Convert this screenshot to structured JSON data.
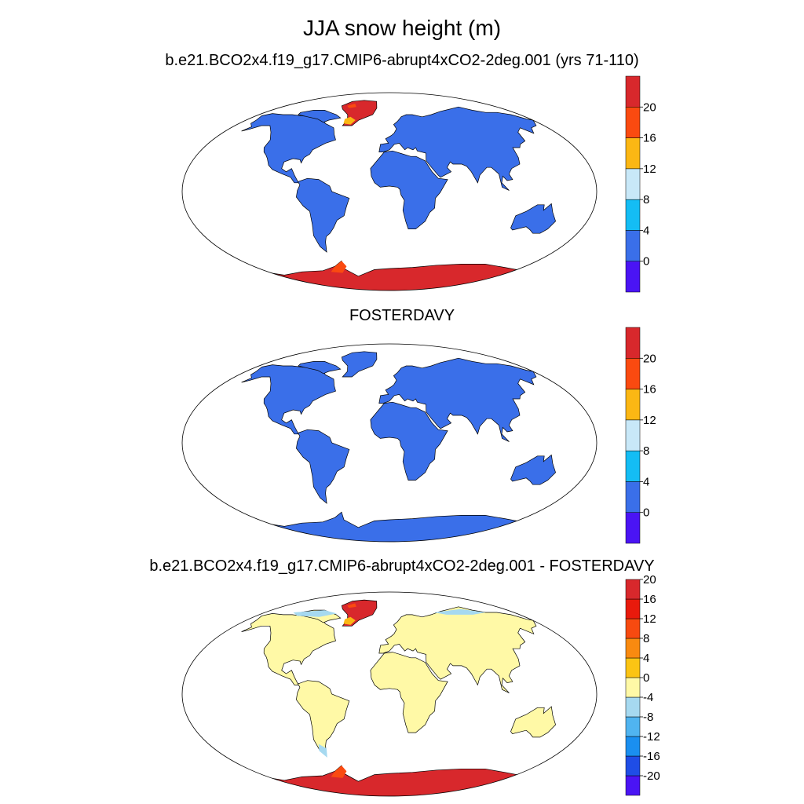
{
  "title": "JJA snow height (m)",
  "panels": [
    {
      "id": "model",
      "title": "b.e21.BCO2x4.f19_g17.CMIP6-abrupt4xCO2-2deg.001 (yrs 71-110)",
      "greenland": true,
      "antarctica": "red",
      "colorbar": {
        "colors": [
          "#4a14f4",
          "#3a6fe9",
          "#14bdf4",
          "#c8e8f8",
          "#fbb714",
          "#fa4a10",
          "#d8282c"
        ],
        "labels": [
          "0",
          "4",
          "8",
          "12",
          "16",
          "20"
        ]
      }
    },
    {
      "id": "obs",
      "title": "FOSTERDAVY",
      "greenland": false,
      "antarctica": "blue",
      "colorbar": {
        "colors": [
          "#4a14f4",
          "#3a6fe9",
          "#14bdf4",
          "#c8e8f8",
          "#fbb714",
          "#fa4a10",
          "#d8282c"
        ],
        "labels": [
          "0",
          "4",
          "8",
          "12",
          "16",
          "20"
        ]
      }
    },
    {
      "id": "diff",
      "title": "b.e21.BCO2x4.f19_g17.CMIP6-abrupt4xCO2-2deg.001 - FOSTERDAVY",
      "greenland": true,
      "antarctica": "red",
      "colorbar": {
        "colors": [
          "#4a14f4",
          "#1f4de6",
          "#1a8ff0",
          "#50b4f0",
          "#a6d9f0",
          "#fff9a6",
          "#fbc414",
          "#f98a10",
          "#f74a10",
          "#e81a0c",
          "#d8282c"
        ],
        "labels": [
          "-20",
          "-16",
          "-12",
          "-8",
          "-4",
          "0",
          "4",
          "8",
          "12",
          "16",
          "20"
        ]
      }
    }
  ]
}
